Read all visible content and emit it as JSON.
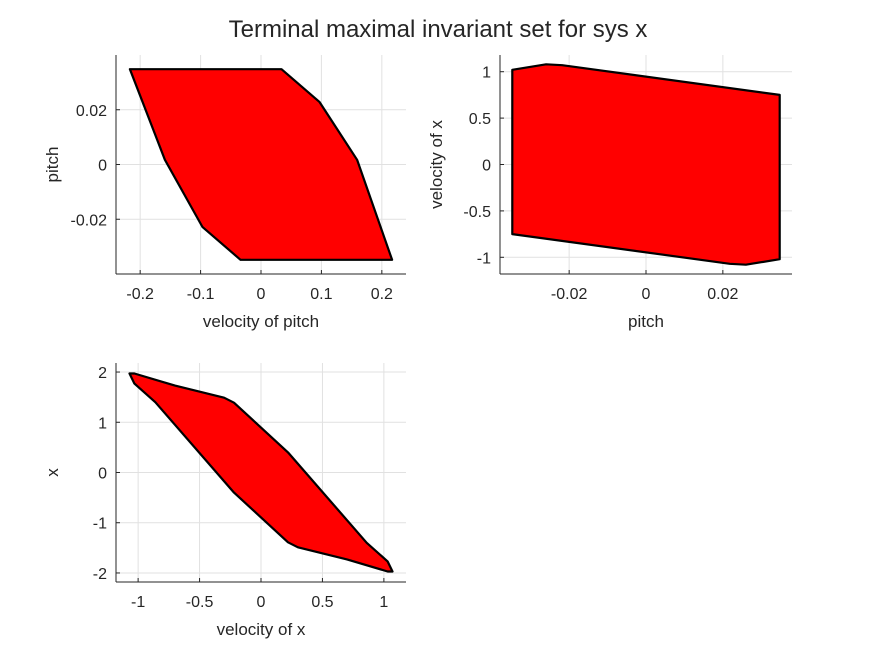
{
  "figure": {
    "title": "Terminal maximal invariant set for sys x"
  },
  "colors": {
    "fill": "#ff0000",
    "edge": "#000000",
    "grid": "#e1e1e1",
    "axis": "#262626"
  },
  "chart_data": [
    {
      "type": "area",
      "xlabel": "velocity of pitch",
      "ylabel": "pitch",
      "xlim": [
        -0.24,
        0.24
      ],
      "ylim": [
        -0.04,
        0.04
      ],
      "xticks": [
        -0.2,
        -0.1,
        0,
        0.1,
        0.2
      ],
      "xtick_labels": [
        "-0.2",
        "-0.1",
        "0",
        "0.1",
        "0.2"
      ],
      "yticks": [
        -0.02,
        0,
        0.02
      ],
      "ytick_labels": [
        "-0.02",
        "0",
        "0.02"
      ],
      "grid": true,
      "series": [
        {
          "x": [
            -0.217,
            0.034,
            0.097,
            0.159,
            0.217,
            0.217,
            -0.034,
            -0.097,
            -0.159,
            -0.217
          ],
          "y": [
            0.0348,
            0.0348,
            0.0228,
            0.0017,
            -0.0348,
            -0.0348,
            -0.0348,
            -0.0228,
            0.0017,
            0.0348
          ]
        }
      ]
    },
    {
      "type": "area",
      "xlabel": "pitch",
      "ylabel": "velocity of x",
      "xlim": [
        -0.038,
        0.038
      ],
      "ylim": [
        -1.18,
        1.18
      ],
      "xticks": [
        -0.02,
        0,
        0.02
      ],
      "xtick_labels": [
        "-0.02",
        "0",
        "0.02"
      ],
      "yticks": [
        -1,
        -0.5,
        0,
        0.5,
        1
      ],
      "ytick_labels": [
        "-1",
        "-0.5",
        "0",
        "0.5",
        "1"
      ],
      "grid": true,
      "series": [
        {
          "x": [
            -0.0348,
            -0.026,
            -0.0218,
            0.0348,
            0.0348,
            0.026,
            0.0218,
            -0.0348
          ],
          "y": [
            1.02,
            1.08,
            1.07,
            0.75,
            -1.02,
            -1.08,
            -1.07,
            -0.75
          ]
        }
      ]
    },
    {
      "type": "area",
      "xlabel": "velocity of x",
      "ylabel": "x",
      "xlim": [
        -1.18,
        1.18
      ],
      "ylim": [
        -2.18,
        2.18
      ],
      "xticks": [
        -1,
        -0.5,
        0,
        0.5,
        1
      ],
      "xtick_labels": [
        "-1",
        "-0.5",
        "0",
        "0.5",
        "1"
      ],
      "yticks": [
        -2,
        -1,
        0,
        1,
        2
      ],
      "ytick_labels": [
        "-2",
        "-1",
        "0",
        "1",
        "2"
      ],
      "grid": true,
      "series": [
        {
          "x": [
            -1.07,
            -1.03,
            -0.7,
            -0.3,
            -0.22,
            0.22,
            0.86,
            1.03,
            1.07,
            1.03,
            0.7,
            0.3,
            0.22,
            -0.22,
            -0.86,
            -1.03
          ],
          "y": [
            1.97,
            1.97,
            1.73,
            1.49,
            1.39,
            0.4,
            -1.4,
            -1.77,
            -1.97,
            -1.97,
            -1.73,
            -1.49,
            -1.39,
            -0.4,
            1.4,
            1.77
          ]
        }
      ]
    }
  ]
}
